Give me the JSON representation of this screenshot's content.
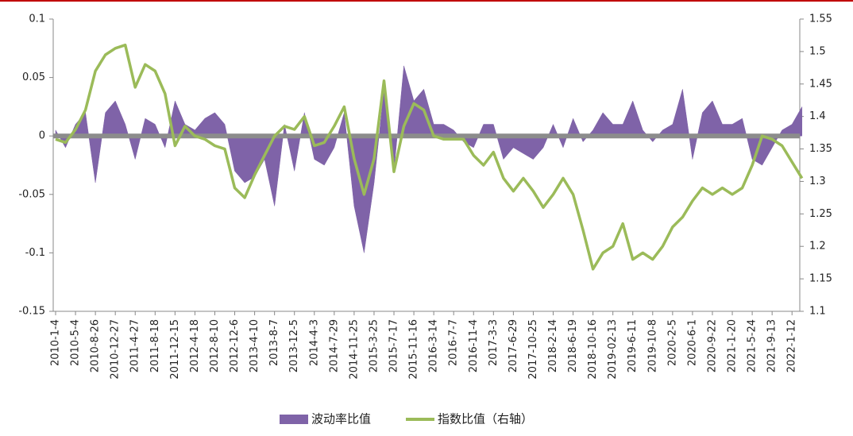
{
  "chart_data": {
    "type": "combo",
    "categories": [
      "2010-1-4",
      null,
      "2010-5-4",
      null,
      "2010-8-26",
      null,
      "2010-12-27",
      null,
      "2011-4-27",
      null,
      "2011-8-18",
      null,
      "2011-12-15",
      null,
      "2012-4-18",
      null,
      "2012-8-10",
      null,
      "2012-12-6",
      null,
      "2013-4-10",
      null,
      "2013-8-7",
      null,
      "2013-12-5",
      null,
      "2014-4-3",
      null,
      "2014-7-29",
      null,
      "2014-11-25",
      null,
      "2015-3-25",
      null,
      "2015-7-17",
      null,
      "2015-11-16",
      null,
      "2016-3-14",
      null,
      "2016-7-7",
      null,
      "2016-11-4",
      null,
      "2017-3-3",
      null,
      "2017-6-29",
      null,
      "2017-10-25",
      null,
      "2018-2-14",
      null,
      "2018-6-19",
      null,
      "2018-10-16",
      null,
      "2019-02-13",
      null,
      "2019-6-11",
      null,
      "2019-10-8",
      null,
      "2020-2-5",
      null,
      "2020-6-1",
      null,
      "2020-9-22",
      null,
      "2021-1-20",
      null,
      "2021-5-24",
      null,
      "2021-9-13",
      null,
      "2022-1-12",
      null
    ],
    "series": [
      {
        "name": "波动率比值",
        "type": "area",
        "color": "#7f63a8",
        "values": [
          0.005,
          -0.01,
          0.01,
          0.02,
          -0.04,
          0.02,
          0.03,
          0.01,
          -0.02,
          0.015,
          0.01,
          -0.01,
          0.03,
          0.01,
          0.005,
          0.015,
          0.02,
          0.01,
          -0.03,
          -0.04,
          -0.035,
          -0.02,
          -0.06,
          0.01,
          -0.03,
          0.02,
          -0.02,
          -0.025,
          -0.01,
          0.02,
          -0.06,
          -0.1,
          -0.04,
          0.04,
          -0.03,
          0.06,
          0.03,
          0.04,
          0.01,
          0.01,
          0.005,
          -0.005,
          -0.01,
          0.01,
          0.01,
          -0.02,
          -0.01,
          -0.015,
          -0.02,
          -0.01,
          0.01,
          -0.01,
          0.015,
          -0.005,
          0.005,
          0.02,
          0.01,
          0.01,
          0.03,
          0.005,
          -0.005,
          0.005,
          0.01,
          0.04,
          -0.02,
          0.02,
          0.03,
          0.01,
          0.01,
          0.015,
          -0.02,
          -0.025,
          -0.01,
          0.005,
          0.01,
          0.025
        ]
      },
      {
        "name": "指数比值（右轴）",
        "type": "line",
        "axis": "y2",
        "color": "#9bbb59",
        "values": [
          1.365,
          1.36,
          1.38,
          1.41,
          1.47,
          1.495,
          1.505,
          1.51,
          1.445,
          1.48,
          1.47,
          1.435,
          1.355,
          1.385,
          1.37,
          1.365,
          1.355,
          1.35,
          1.29,
          1.275,
          1.31,
          1.34,
          1.37,
          1.385,
          1.38,
          1.4,
          1.355,
          1.36,
          1.385,
          1.415,
          1.335,
          1.28,
          1.335,
          1.455,
          1.315,
          1.385,
          1.42,
          1.41,
          1.37,
          1.365,
          1.365,
          1.365,
          1.34,
          1.325,
          1.345,
          1.305,
          1.285,
          1.305,
          1.285,
          1.26,
          1.28,
          1.305,
          1.28,
          1.225,
          1.165,
          1.19,
          1.2,
          1.235,
          1.18,
          1.19,
          1.18,
          1.2,
          1.23,
          1.245,
          1.27,
          1.29,
          1.28,
          1.29,
          1.28,
          1.29,
          1.325,
          1.37,
          1.365,
          1.355,
          1.33,
          1.305
        ]
      }
    ],
    "ylim": [
      -0.15,
      0.1
    ],
    "yticks": [
      0.1,
      0.05,
      0,
      -0.05,
      -0.1,
      -0.15
    ],
    "y2lim": [
      1.1,
      1.55
    ],
    "y2ticks": [
      1.55,
      1.5,
      1.45,
      1.4,
      1.35,
      1.3,
      1.25,
      1.2,
      1.15,
      1.1
    ],
    "grid": false,
    "legend": "bottom"
  }
}
